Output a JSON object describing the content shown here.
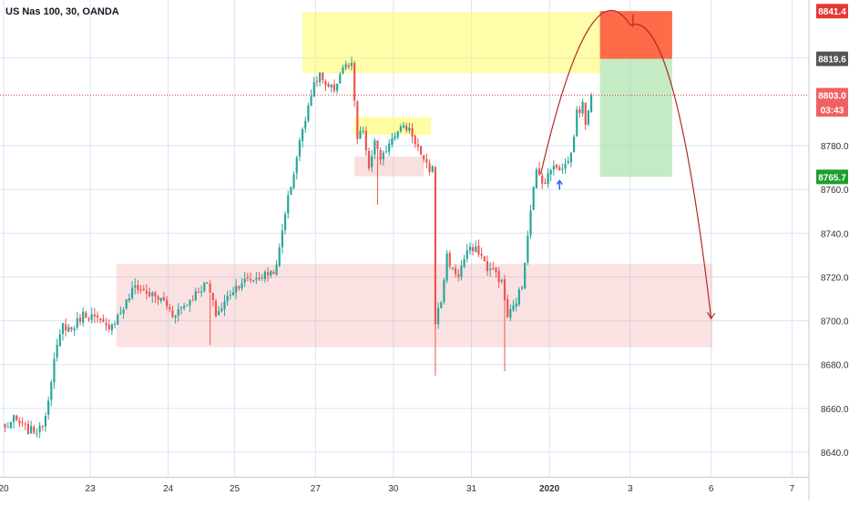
{
  "chart_data": {
    "type": "candlestick",
    "title": "US Nas 100, 30, OANDA",
    "y_ticks": [
      8640,
      8660,
      8680,
      8700,
      8720,
      8740,
      8760,
      8780
    ],
    "y_tick_labels": [
      "8640.0",
      "8660.0",
      "8680.0",
      "8700.0",
      "8720.0",
      "8740.0",
      "8760.0",
      "8780.0"
    ],
    "ylim": [
      8633,
      8845
    ],
    "x_ticks": [
      {
        "label": "20",
        "bar": 0,
        "bold": false
      },
      {
        "label": "23",
        "bar": 30,
        "bold": false
      },
      {
        "label": "24",
        "bar": 57,
        "bold": false
      },
      {
        "label": "25",
        "bar": 80,
        "bold": false
      },
      {
        "label": "27",
        "bar": 108,
        "bold": false
      },
      {
        "label": "30",
        "bar": 135,
        "bold": false
      },
      {
        "label": "31",
        "bar": 162,
        "bold": false
      },
      {
        "label": "2020",
        "bar": 189,
        "bold": true
      },
      {
        "label": "3",
        "bar": 217,
        "bold": false
      },
      {
        "label": "6",
        "bar": 245,
        "bold": false
      },
      {
        "label": "7",
        "bar": 273,
        "bold": false
      }
    ],
    "price_tags": [
      {
        "label": "8841.4",
        "value": 8841.4,
        "color": "#e53935",
        "text_color": "#ffffff"
      },
      {
        "label": "8819.6",
        "value": 8819.6,
        "color": "#555555",
        "text_color": "#ffffff"
      },
      {
        "label": "8803.0",
        "value": 8803.0,
        "color": "#f06262",
        "text_color": "#ffffff"
      },
      {
        "label": "03:43",
        "value": 8796.5,
        "color": "#f06262",
        "text_color": "#ffffff"
      },
      {
        "label": "8765.7",
        "value": 8765.7,
        "color": "#1e9e2e",
        "text_color": "#ffffff"
      }
    ],
    "current_price": 8803.0,
    "zones": [
      {
        "kind": "supply",
        "x0": 103.5,
        "x1": 206.5,
        "y0": 8813,
        "y1": 8841,
        "color": "rgba(255,250,100,0.55)"
      },
      {
        "kind": "supply",
        "x0": 121.5,
        "x1": 148,
        "y0": 8785,
        "y1": 8793,
        "color": "rgba(255,250,100,0.6)"
      },
      {
        "kind": "demand",
        "x0": 121.5,
        "x1": 145.5,
        "y0": 8766,
        "y1": 8775,
        "color": "rgba(240,150,150,0.3)"
      },
      {
        "kind": "demand",
        "x0": 39,
        "x1": 245.5,
        "y0": 8688,
        "y1": 8726,
        "color": "rgba(240,150,150,0.28)"
      },
      {
        "kind": "stop",
        "x0": 206.5,
        "x1": 231.5,
        "y0": 8819.6,
        "y1": 8841.4,
        "color": "rgba(255,80,40,0.85)"
      },
      {
        "kind": "target",
        "x0": 206.5,
        "x1": 231.5,
        "y0": 8765.7,
        "y1": 8819.6,
        "color": "rgba(140,215,140,0.5)"
      }
    ],
    "projection": {
      "start": {
        "bar": 186,
        "value": 8767
      },
      "peak": {
        "bar": 217,
        "value": 8835
      },
      "end": {
        "bar": 245,
        "value": 8701
      }
    },
    "markers": [
      {
        "bar": 192,
        "value": 8764
      }
    ],
    "anchors": [
      {
        "bar": 0,
        "value": 8651
      },
      {
        "bar": 3,
        "value": 8655
      },
      {
        "bar": 8,
        "value": 8650
      },
      {
        "bar": 12,
        "value": 8650
      },
      {
        "bar": 14,
        "value": 8657
      },
      {
        "bar": 17,
        "value": 8682
      },
      {
        "bar": 20,
        "value": 8698
      },
      {
        "bar": 23,
        "value": 8696
      },
      {
        "bar": 27,
        "value": 8703
      },
      {
        "bar": 30,
        "value": 8702
      },
      {
        "bar": 35,
        "value": 8697
      },
      {
        "bar": 38,
        "value": 8700
      },
      {
        "bar": 41,
        "value": 8706
      },
      {
        "bar": 45,
        "value": 8716
      },
      {
        "bar": 50,
        "value": 8712
      },
      {
        "bar": 55,
        "value": 8709
      },
      {
        "bar": 58,
        "value": 8703
      },
      {
        "bar": 63,
        "value": 8708
      },
      {
        "bar": 67,
        "value": 8714
      },
      {
        "bar": 70,
        "value": 8717
      },
      {
        "bar": 73,
        "value": 8703
      },
      {
        "bar": 75,
        "value": 8706
      },
      {
        "bar": 78,
        "value": 8713
      },
      {
        "bar": 82,
        "value": 8718
      },
      {
        "bar": 86,
        "value": 8719
      },
      {
        "bar": 90,
        "value": 8721
      },
      {
        "bar": 94,
        "value": 8724
      },
      {
        "bar": 97,
        "value": 8750
      },
      {
        "bar": 100,
        "value": 8768
      },
      {
        "bar": 103,
        "value": 8788
      },
      {
        "bar": 106,
        "value": 8804
      },
      {
        "bar": 109,
        "value": 8813
      },
      {
        "bar": 111,
        "value": 8806
      },
      {
        "bar": 114,
        "value": 8806
      },
      {
        "bar": 117,
        "value": 8816
      },
      {
        "bar": 120,
        "value": 8816
      },
      {
        "bar": 122,
        "value": 8783
      },
      {
        "bar": 124,
        "value": 8787
      },
      {
        "bar": 126,
        "value": 8768
      },
      {
        "bar": 128,
        "value": 8783
      },
      {
        "bar": 130,
        "value": 8772
      },
      {
        "bar": 133,
        "value": 8782
      },
      {
        "bar": 136,
        "value": 8788
      },
      {
        "bar": 140,
        "value": 8788
      },
      {
        "bar": 143,
        "value": 8779
      },
      {
        "bar": 145,
        "value": 8772
      },
      {
        "bar": 147,
        "value": 8769
      },
      {
        "bar": 148,
        "value": 8770
      },
      {
        "bar": 149,
        "value": 8700
      },
      {
        "bar": 151,
        "value": 8709
      },
      {
        "bar": 153,
        "value": 8730
      },
      {
        "bar": 155,
        "value": 8723
      },
      {
        "bar": 157,
        "value": 8721
      },
      {
        "bar": 160,
        "value": 8732
      },
      {
        "bar": 164,
        "value": 8732
      },
      {
        "bar": 167,
        "value": 8724
      },
      {
        "bar": 170,
        "value": 8722
      },
      {
        "bar": 172,
        "value": 8717
      },
      {
        "bar": 174,
        "value": 8702
      },
      {
        "bar": 176,
        "value": 8706
      },
      {
        "bar": 179,
        "value": 8716
      },
      {
        "bar": 182,
        "value": 8752
      },
      {
        "bar": 184,
        "value": 8768
      },
      {
        "bar": 187,
        "value": 8763
      },
      {
        "bar": 190,
        "value": 8772
      },
      {
        "bar": 193,
        "value": 8769
      },
      {
        "bar": 196,
        "value": 8776
      },
      {
        "bar": 198,
        "value": 8795
      },
      {
        "bar": 200,
        "value": 8798
      },
      {
        "bar": 201,
        "value": 8791
      },
      {
        "bar": 203,
        "value": 8803
      }
    ]
  }
}
